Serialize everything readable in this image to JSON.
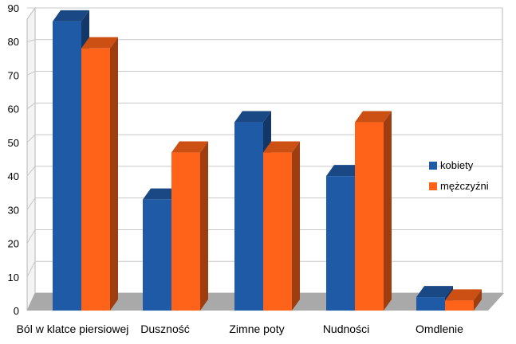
{
  "chart_data": {
    "type": "bar",
    "title": "",
    "xlabel": "",
    "ylabel": "",
    "categories": [
      "Ból w klatce piersiowej",
      "Duszność",
      "Zimne poty",
      "Nudności",
      "Omdlenie"
    ],
    "series": [
      {
        "name": "kobiety",
        "values": [
          86,
          33,
          56,
          40,
          4
        ],
        "color": "#1f5aa6"
      },
      {
        "name": "mężczyźni",
        "values": [
          78,
          47,
          47,
          56,
          3
        ],
        "color": "#ff6319"
      }
    ],
    "ylim": [
      0,
      90
    ],
    "yticks": [
      0,
      10,
      20,
      30,
      40,
      50,
      60,
      70,
      80,
      90
    ],
    "grid": true,
    "legend_position": "right"
  }
}
